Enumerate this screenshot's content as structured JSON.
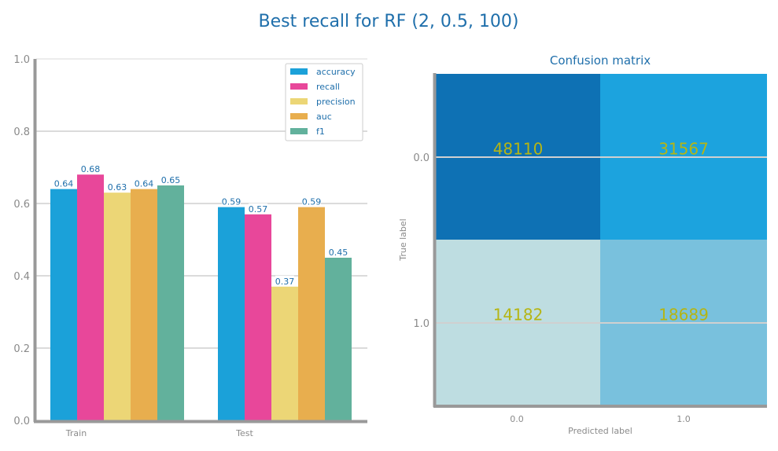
{
  "title": "Best recall for RF (2, 0.5, 100)",
  "chart_data": [
    {
      "type": "bar",
      "title": "",
      "categories": [
        "Train",
        "Test"
      ],
      "series": [
        {
          "name": "accuracy",
          "color": "#1ba1d9",
          "values": [
            0.64,
            0.59
          ]
        },
        {
          "name": "recall",
          "color": "#e8479a",
          "values": [
            0.68,
            0.57
          ]
        },
        {
          "name": "precision",
          "color": "#ecd676",
          "values": [
            0.63,
            0.37
          ]
        },
        {
          "name": "auc",
          "color": "#e8ae4e",
          "values": [
            0.64,
            0.59
          ]
        },
        {
          "name": "f1",
          "color": "#62b19c",
          "values": [
            0.65,
            0.45
          ]
        }
      ],
      "value_labels": [
        [
          "0.64",
          "0.68",
          "0.63",
          "0.64",
          "0.65"
        ],
        [
          "0.59",
          "0.57",
          "0.37",
          "0.59",
          "0.45"
        ]
      ],
      "ylim": [
        0,
        1
      ],
      "yticks": [
        "0.0",
        "0.2",
        "0.4",
        "0.6",
        "0.8",
        "1.0"
      ],
      "legend_loc": "top-right",
      "grid": true
    },
    {
      "type": "heatmap",
      "title": "Confusion matrix",
      "xlabel": "Predicted label",
      "ylabel": "True label",
      "xticks": [
        "0.0",
        "1.0"
      ],
      "yticks": [
        "0.0",
        "1.0"
      ],
      "matrix": [
        [
          48110,
          31567
        ],
        [
          14182,
          18689
        ]
      ],
      "cell_colors": [
        [
          "#0e71b4",
          "#1ca3de"
        ],
        [
          "#bedde1",
          "#79c1dd"
        ]
      ],
      "text_color": "#b5b514"
    }
  ]
}
